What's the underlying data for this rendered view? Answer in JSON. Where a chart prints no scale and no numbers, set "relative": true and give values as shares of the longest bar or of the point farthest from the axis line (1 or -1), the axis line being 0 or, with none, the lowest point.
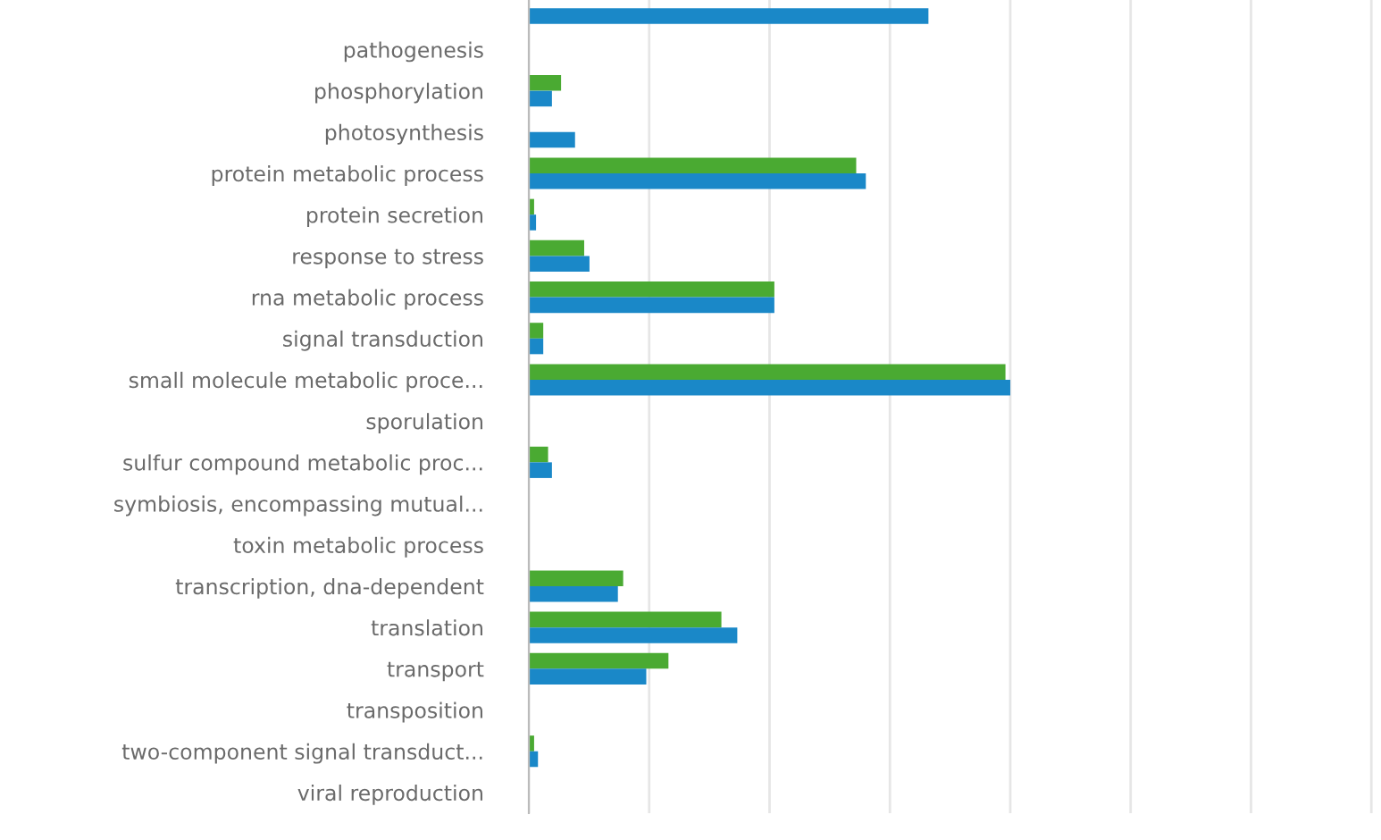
{
  "chart_data": {
    "type": "bar",
    "orientation": "horizontal",
    "relative": true,
    "grid": "x",
    "categories": [
      null,
      "pathogenesis",
      "phosphorylation",
      "photosynthesis",
      "protein metabolic process",
      "protein secretion",
      "response to stress",
      "rna metabolic process",
      "signal transduction",
      "small molecule metabolic proce...",
      "sporulation",
      "sulfur compound metabolic proc...",
      "symbiosis, encompassing mutual...",
      "toxin metabolic process",
      "transcription, dna-dependent",
      "translation",
      "transport",
      "transposition",
      "two-component signal transduct...",
      "viral reproduction"
    ],
    "series": [
      {
        "color": "#4aaa32",
        "values": [
          null,
          0,
          0.067,
          0,
          0.68,
          0.011,
          0.115,
          0.51,
          0.03,
          0.99,
          0,
          0.04,
          0,
          0,
          0.196,
          0.4,
          0.29,
          0,
          0.011,
          0
        ]
      },
      {
        "color": "#1a88c8",
        "values": [
          0.83,
          0,
          0.048,
          0.096,
          0.7,
          0.015,
          0.126,
          0.51,
          0.03,
          1,
          0,
          0.048,
          0,
          0,
          0.185,
          0.433,
          0.244,
          null,
          0.019,
          0
        ]
      }
    ]
  }
}
